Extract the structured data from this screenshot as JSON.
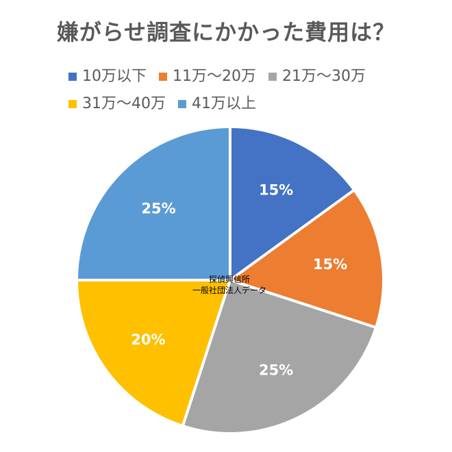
{
  "chart_data": {
    "type": "pie",
    "title": "嫌がらせ調査にかかった費用は？",
    "categories": [
      "10万以下",
      "11万～20万",
      "21万～30万",
      "31万～40万",
      "41万以上"
    ],
    "values": [
      15,
      15,
      25,
      20,
      25
    ],
    "labels": [
      "15%",
      "15%",
      "25%",
      "20%",
      "25%"
    ],
    "colors": [
      "#4472C4",
      "#ED7D31",
      "#A5A5A5",
      "#FFC000",
      "#5B9BD5"
    ],
    "legend": "top",
    "note": [
      "探偵興信所",
      "一般社団法人データ"
    ]
  }
}
